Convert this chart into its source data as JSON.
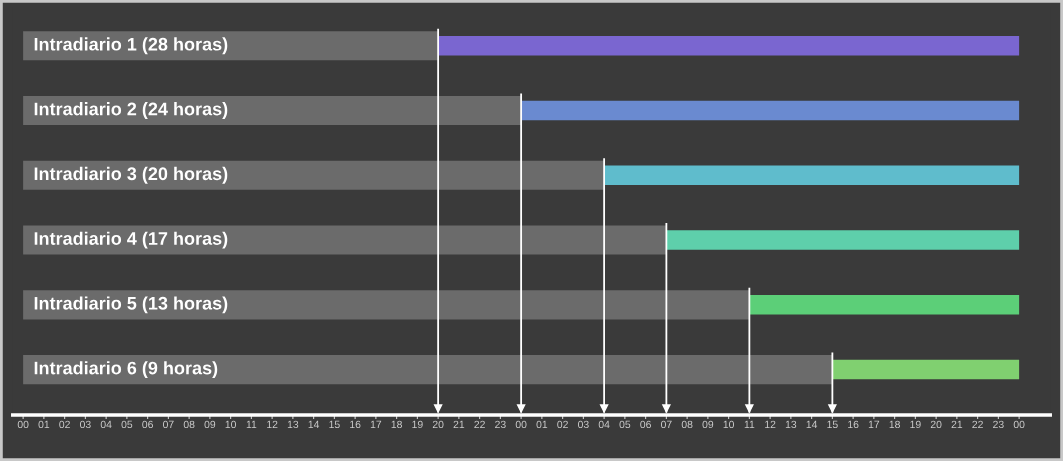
{
  "chart_data": {
    "type": "bar",
    "orientation": "horizontal",
    "stacked": true,
    "categories": [
      "Intradiario 1 (28 horas)",
      "Intradiario 2 (24 horas)",
      "Intradiario 3 (20 horas)",
      "Intradiario 4 (17 horas)",
      "Intradiario 5 (13 horas)",
      "Intradiario 6 (9 horas)"
    ],
    "series": [
      {
        "color": "#6b6b6b",
        "values": [
          20,
          24,
          28,
          31,
          35,
          39
        ]
      },
      {
        "colors": [
          "#7a66d0",
          "#6a8ad0",
          "#5fbccc",
          "#5ecfab",
          "#5ccf78",
          "#80d070"
        ],
        "values": [
          28,
          24,
          20,
          17,
          13,
          9
        ]
      }
    ],
    "xlim": [
      -0.5,
      49.5
    ],
    "xticks": [
      {
        "value": 0,
        "label": "00"
      },
      {
        "value": 1,
        "label": "01"
      },
      {
        "value": 2,
        "label": "02"
      },
      {
        "value": 3,
        "label": "03"
      },
      {
        "value": 4,
        "label": "04"
      },
      {
        "value": 5,
        "label": "05"
      },
      {
        "value": 6,
        "label": "06"
      },
      {
        "value": 7,
        "label": "07"
      },
      {
        "value": 8,
        "label": "08"
      },
      {
        "value": 9,
        "label": "09"
      },
      {
        "value": 10,
        "label": "10"
      },
      {
        "value": 11,
        "label": "11"
      },
      {
        "value": 12,
        "label": "12"
      },
      {
        "value": 13,
        "label": "13"
      },
      {
        "value": 14,
        "label": "14"
      },
      {
        "value": 15,
        "label": "15"
      },
      {
        "value": 16,
        "label": "16"
      },
      {
        "value": 17,
        "label": "17"
      },
      {
        "value": 18,
        "label": "18"
      },
      {
        "value": 19,
        "label": "19"
      },
      {
        "value": 20,
        "label": "20"
      },
      {
        "value": 21,
        "label": "21"
      },
      {
        "value": 22,
        "label": "22"
      },
      {
        "value": 23,
        "label": "23"
      },
      {
        "value": 24,
        "label": "00"
      },
      {
        "value": 25,
        "label": "01"
      },
      {
        "value": 26,
        "label": "02"
      },
      {
        "value": 27,
        "label": "03"
      },
      {
        "value": 28,
        "label": "04"
      },
      {
        "value": 29,
        "label": "05"
      },
      {
        "value": 30,
        "label": "06"
      },
      {
        "value": 31,
        "label": "07"
      },
      {
        "value": 32,
        "label": "08"
      },
      {
        "value": 33,
        "label": "09"
      },
      {
        "value": 34,
        "label": "10"
      },
      {
        "value": 35,
        "label": "11"
      },
      {
        "value": 36,
        "label": "12"
      },
      {
        "value": 37,
        "label": "13"
      },
      {
        "value": 38,
        "label": "14"
      },
      {
        "value": 39,
        "label": "15"
      },
      {
        "value": 40,
        "label": "16"
      },
      {
        "value": 41,
        "label": "17"
      },
      {
        "value": 42,
        "label": "18"
      },
      {
        "value": 43,
        "label": "19"
      },
      {
        "value": 44,
        "label": "20"
      },
      {
        "value": 45,
        "label": "21"
      },
      {
        "value": 46,
        "label": "22"
      },
      {
        "value": 47,
        "label": "23"
      },
      {
        "value": 48,
        "label": "00"
      }
    ],
    "ref_lines": [
      {
        "axis": "x",
        "value": 20,
        "color": "#ffffff"
      },
      {
        "axis": "x",
        "value": 24,
        "color": "#ffffff"
      },
      {
        "axis": "x",
        "value": 28,
        "color": "#ffffff"
      },
      {
        "axis": "x",
        "value": 31,
        "color": "#ffffff"
      },
      {
        "axis": "x",
        "value": 35,
        "color": "#ffffff"
      },
      {
        "axis": "x",
        "value": 39,
        "color": "#ffffff"
      }
    ],
    "grid": false,
    "legend": false
  }
}
